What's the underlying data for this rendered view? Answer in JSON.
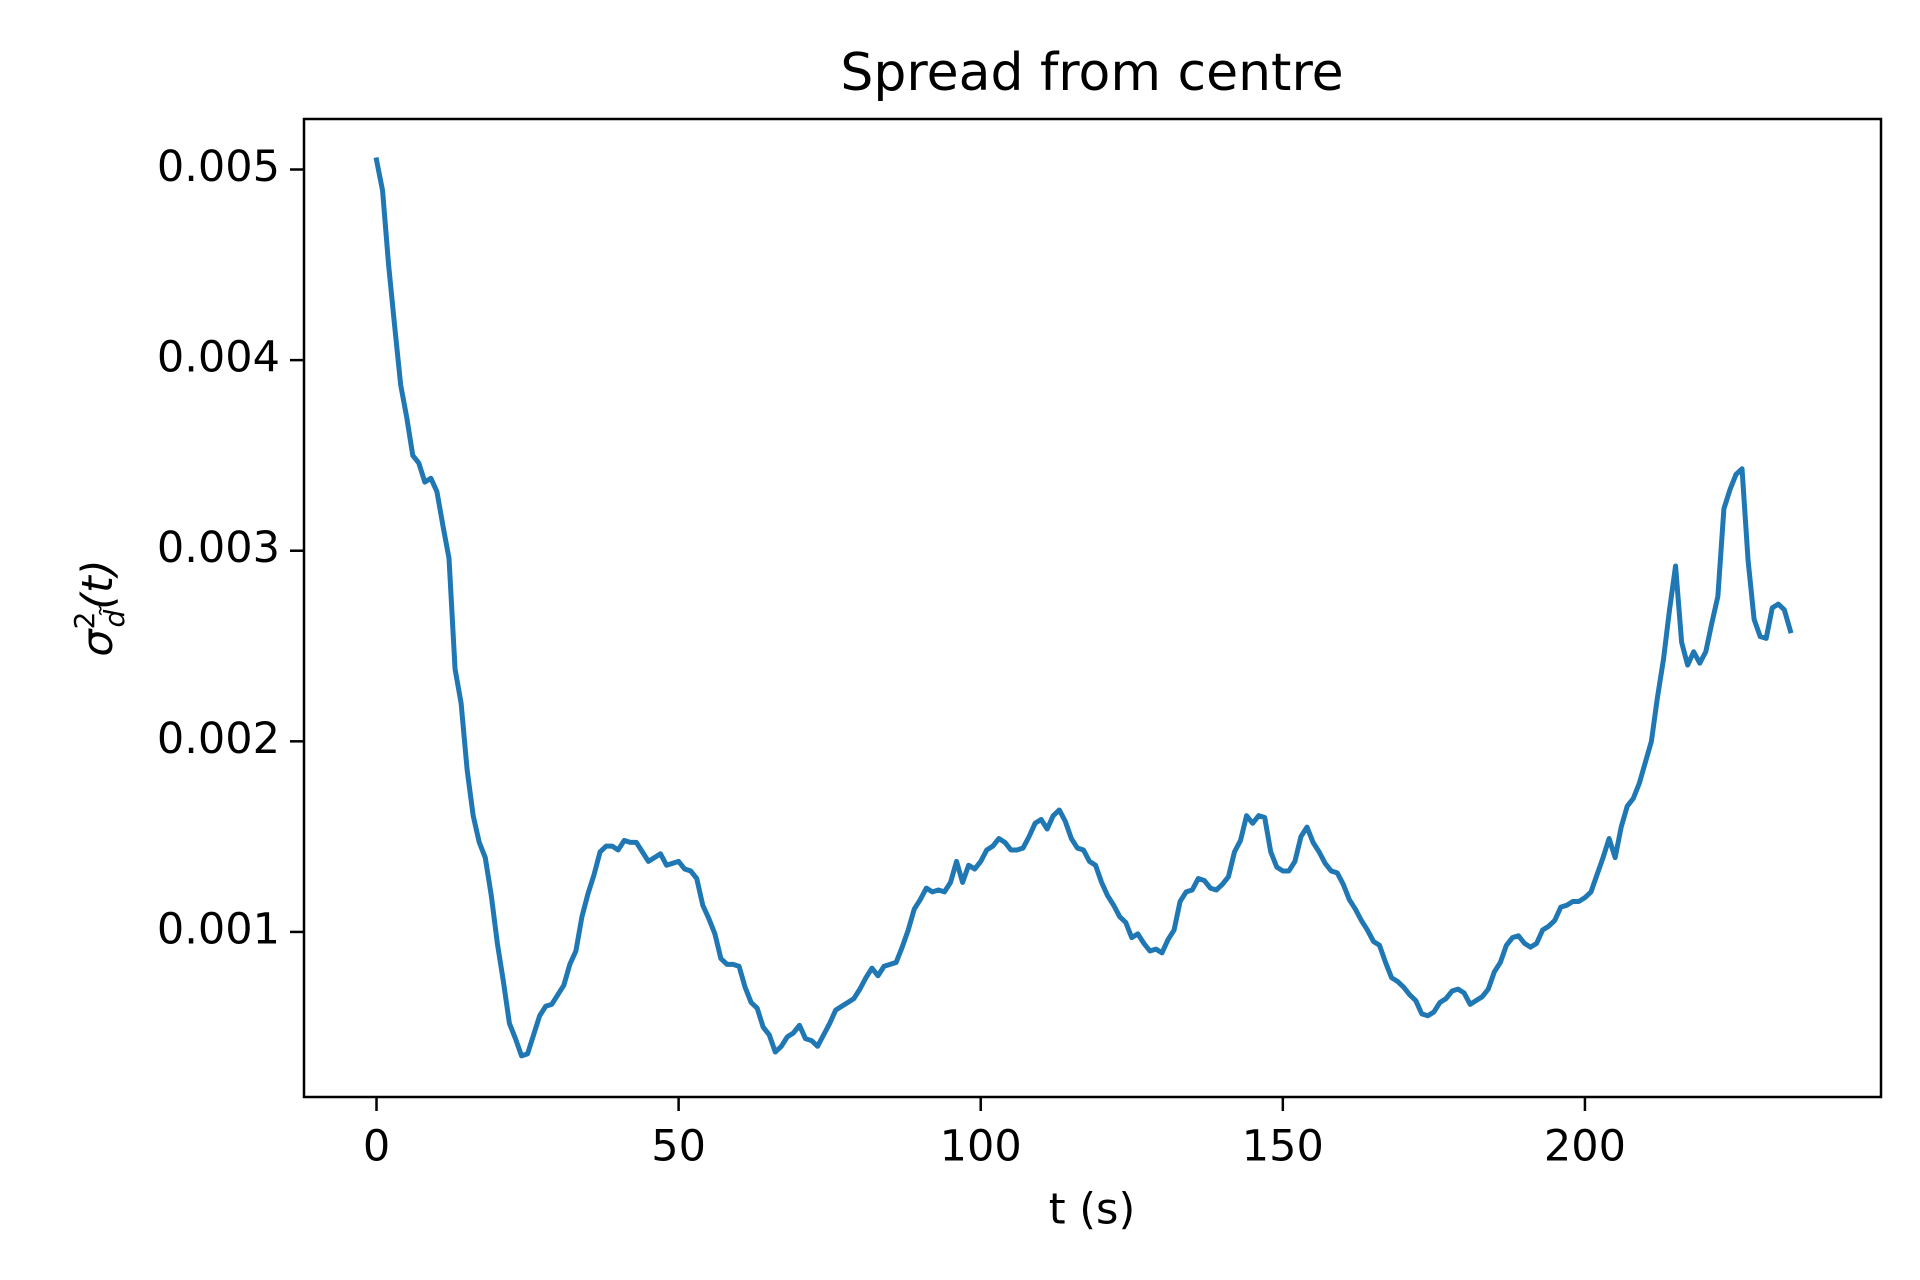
{
  "chart_data": {
    "type": "line",
    "title": "Spread from centre",
    "xlabel": "t (s)",
    "ylabel": {
      "symbol": "σ",
      "sup": "2",
      "sub": "d̃",
      "arg": "(t)"
    },
    "x": [
      0,
      1,
      2,
      3,
      4,
      5,
      6,
      7,
      8,
      9,
      10,
      11,
      12,
      13,
      14,
      15,
      16,
      17,
      18,
      19,
      20,
      21,
      22,
      23,
      24,
      25,
      26,
      27,
      28,
      29,
      30,
      31,
      32,
      33,
      34,
      35,
      36,
      37,
      38,
      39,
      40,
      41,
      42,
      43,
      44,
      45,
      46,
      47,
      48,
      49,
      50,
      51,
      52,
      53,
      54,
      55,
      56,
      57,
      58,
      59,
      60,
      61,
      62,
      63,
      64,
      65,
      66,
      67,
      68,
      69,
      70,
      71,
      72,
      73,
      74,
      75,
      76,
      77,
      78,
      79,
      80,
      81,
      82,
      83,
      84,
      85,
      86,
      87,
      88,
      89,
      90,
      91,
      92,
      93,
      94,
      95,
      96,
      97,
      98,
      99,
      100,
      101,
      102,
      103,
      104,
      105,
      106,
      107,
      108,
      109,
      110,
      111,
      112,
      113,
      114,
      115,
      116,
      117,
      118,
      119,
      120,
      121,
      122,
      123,
      124,
      125,
      126,
      127,
      128,
      129,
      130,
      131,
      132,
      133,
      134,
      135,
      136,
      137,
      138,
      139,
      140,
      141,
      142,
      143,
      144,
      145,
      146,
      147,
      148,
      149,
      150,
      151,
      152,
      153,
      154,
      155,
      156,
      157,
      158,
      159,
      160,
      161,
      162,
      163,
      164,
      165,
      166,
      167,
      168,
      169,
      170,
      171,
      172,
      173,
      174,
      175,
      176,
      177,
      178,
      179,
      180,
      181,
      182,
      183,
      184,
      185,
      186,
      187,
      188,
      189,
      190,
      191,
      192,
      193,
      194,
      195,
      196,
      197,
      198,
      199,
      200,
      201,
      202,
      203,
      204,
      205,
      206,
      207,
      208,
      209,
      210,
      211,
      212,
      213,
      214,
      215,
      216,
      217,
      218,
      219,
      220,
      221,
      222,
      223,
      224,
      225,
      226,
      227,
      228,
      229,
      230,
      231,
      232,
      233,
      234
    ],
    "series": [
      {
        "color": "#1f77b4",
        "values": [
          0.00505,
          0.00489,
          0.0045,
          0.00418,
          0.00387,
          0.0037,
          0.0035,
          0.00346,
          0.00336,
          0.00338,
          0.00331,
          0.00313,
          0.00296,
          0.00238,
          0.0022,
          0.00185,
          0.00161,
          0.00147,
          0.00139,
          0.00119,
          0.00094,
          0.00074,
          0.00052,
          0.00044,
          0.00035,
          0.00036,
          0.00046,
          0.00056,
          0.00061,
          0.00062,
          0.00067,
          0.00072,
          0.00083,
          0.0009,
          0.00108,
          0.0012,
          0.0013,
          0.00142,
          0.00145,
          0.00145,
          0.00143,
          0.00148,
          0.00147,
          0.00147,
          0.00142,
          0.00137,
          0.00139,
          0.00141,
          0.00135,
          0.00136,
          0.00137,
          0.00133,
          0.00132,
          0.00128,
          0.00114,
          0.00107,
          0.00099,
          0.00086,
          0.00083,
          0.00083,
          0.00082,
          0.00071,
          0.00063,
          0.0006,
          0.0005,
          0.00046,
          0.00037,
          0.0004,
          0.00045,
          0.00047,
          0.00051,
          0.00044,
          0.00043,
          0.0004,
          0.00046,
          0.00052,
          0.00059,
          0.00061,
          0.00063,
          0.00065,
          0.0007,
          0.00076,
          0.00081,
          0.00077,
          0.00082,
          0.00083,
          0.00084,
          0.00092,
          0.00101,
          0.00112,
          0.00117,
          0.00123,
          0.00121,
          0.00122,
          0.00121,
          0.00126,
          0.00137,
          0.00126,
          0.00135,
          0.00133,
          0.00137,
          0.00143,
          0.00145,
          0.00149,
          0.00147,
          0.00143,
          0.00143,
          0.00144,
          0.0015,
          0.00157,
          0.00159,
          0.00154,
          0.00161,
          0.00164,
          0.00158,
          0.00149,
          0.00144,
          0.00143,
          0.00137,
          0.00135,
          0.00126,
          0.00119,
          0.00114,
          0.00108,
          0.00105,
          0.00097,
          0.00099,
          0.00094,
          0.0009,
          0.00091,
          0.00089,
          0.00096,
          0.00101,
          0.00116,
          0.00121,
          0.00122,
          0.00128,
          0.00127,
          0.00123,
          0.00122,
          0.00125,
          0.00129,
          0.00142,
          0.00148,
          0.00161,
          0.00157,
          0.00161,
          0.0016,
          0.00142,
          0.00134,
          0.00132,
          0.00132,
          0.00137,
          0.0015,
          0.00155,
          0.00147,
          0.00142,
          0.00136,
          0.00132,
          0.00131,
          0.00125,
          0.00117,
          0.00112,
          0.00106,
          0.00101,
          0.00095,
          0.00093,
          0.00084,
          0.00076,
          0.00074,
          0.00071,
          0.00067,
          0.00064,
          0.00057,
          0.00056,
          0.00058,
          0.00063,
          0.00065,
          0.00069,
          0.0007,
          0.00068,
          0.00062,
          0.00064,
          0.00066,
          0.0007,
          0.00079,
          0.00084,
          0.00093,
          0.00097,
          0.00098,
          0.00094,
          0.00092,
          0.00094,
          0.00101,
          0.00103,
          0.00106,
          0.00113,
          0.00114,
          0.00116,
          0.00116,
          0.00118,
          0.00121,
          0.0013,
          0.00139,
          0.00149,
          0.00139,
          0.00155,
          0.00166,
          0.0017,
          0.00178,
          0.00189,
          0.002,
          0.00223,
          0.00243,
          0.00269,
          0.00292,
          0.00252,
          0.0024,
          0.00247,
          0.00241,
          0.00247,
          0.00262,
          0.00276,
          0.00322,
          0.00332,
          0.0034,
          0.00343,
          0.00295,
          0.00264,
          0.00255,
          0.00254,
          0.0027,
          0.00272,
          0.00269,
          0.00258
        ]
      }
    ],
    "xlim": [
      -12,
      249
    ],
    "ylim": [
      0.000134,
      0.005265
    ],
    "xticks": [
      0,
      50,
      100,
      150,
      200
    ],
    "yticks": [
      0.001,
      0.002,
      0.003,
      0.004,
      0.005
    ],
    "grid": false
  }
}
